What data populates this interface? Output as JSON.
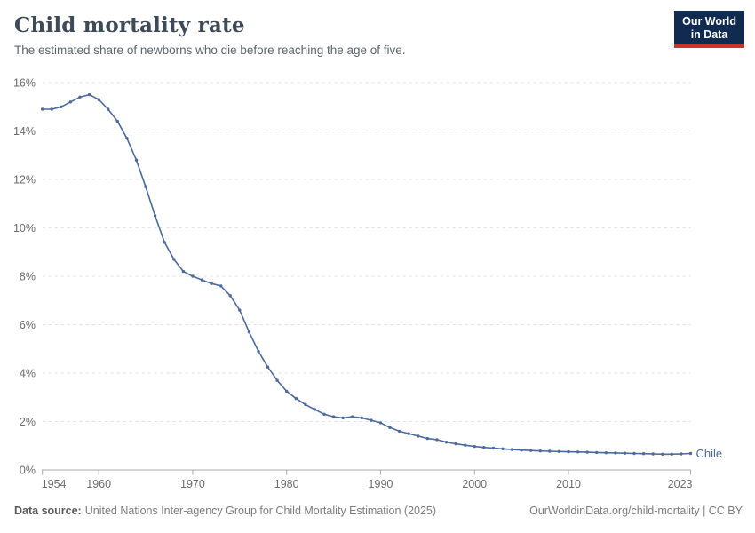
{
  "header": {
    "title": "Child mortality rate",
    "subtitle": "The estimated share of newborns who die before reaching the age of five.",
    "logo": {
      "line1": "Our World",
      "line2": "in Data"
    }
  },
  "footer": {
    "source_label": "Data source:",
    "source_text": "United Nations Inter-agency Group for Child Mortality Estimation (2025)",
    "rights_text": "OurWorldinData.org/child-mortality | CC BY"
  },
  "colors": {
    "series": "#4c6a9c",
    "logo_bg": "#102a50",
    "logo_accent": "#cc342b",
    "grid": "#e0e0e0",
    "axis": "#a8a8a8",
    "tick_text": "#6b6b6b"
  },
  "chart_data": {
    "type": "line",
    "title": "Child mortality rate",
    "subtitle": "The estimated share of newborns who die before reaching the age of five.",
    "xlim": [
      1954,
      2023
    ],
    "ylim": [
      0,
      16
    ],
    "y_unit": "%",
    "grid": "horizontal dashed",
    "legend": "end-of-line entity label",
    "x_ticks": [
      1954,
      1960,
      1970,
      1980,
      1990,
      2000,
      2010,
      2023
    ],
    "y_ticks": [
      0,
      2,
      4,
      6,
      8,
      10,
      12,
      14,
      16
    ],
    "series": [
      {
        "name": "Chile",
        "color": "#4c6a9c",
        "x": [
          1954,
          1955,
          1956,
          1957,
          1958,
          1959,
          1960,
          1961,
          1962,
          1963,
          1964,
          1965,
          1966,
          1967,
          1968,
          1969,
          1970,
          1971,
          1972,
          1973,
          1974,
          1975,
          1976,
          1977,
          1978,
          1979,
          1980,
          1981,
          1982,
          1983,
          1984,
          1985,
          1986,
          1987,
          1988,
          1989,
          1990,
          1991,
          1992,
          1993,
          1994,
          1995,
          1996,
          1997,
          1998,
          1999,
          2000,
          2001,
          2002,
          2003,
          2004,
          2005,
          2006,
          2007,
          2008,
          2009,
          2010,
          2011,
          2012,
          2013,
          2014,
          2015,
          2016,
          2017,
          2018,
          2019,
          2020,
          2021,
          2022,
          2023
        ],
        "y": [
          14.9,
          14.9,
          15.0,
          15.2,
          15.4,
          15.5,
          15.3,
          14.9,
          14.4,
          13.7,
          12.8,
          11.7,
          10.5,
          9.4,
          8.7,
          8.2,
          8.0,
          7.85,
          7.7,
          7.6,
          7.2,
          6.6,
          5.7,
          4.9,
          4.25,
          3.7,
          3.25,
          2.95,
          2.7,
          2.5,
          2.3,
          2.2,
          2.15,
          2.2,
          2.15,
          2.05,
          1.95,
          1.75,
          1.6,
          1.5,
          1.4,
          1.3,
          1.25,
          1.15,
          1.08,
          1.02,
          0.97,
          0.93,
          0.9,
          0.87,
          0.84,
          0.82,
          0.8,
          0.78,
          0.77,
          0.76,
          0.75,
          0.74,
          0.73,
          0.72,
          0.71,
          0.7,
          0.69,
          0.68,
          0.67,
          0.66,
          0.65,
          0.65,
          0.66,
          0.68
        ]
      }
    ]
  }
}
